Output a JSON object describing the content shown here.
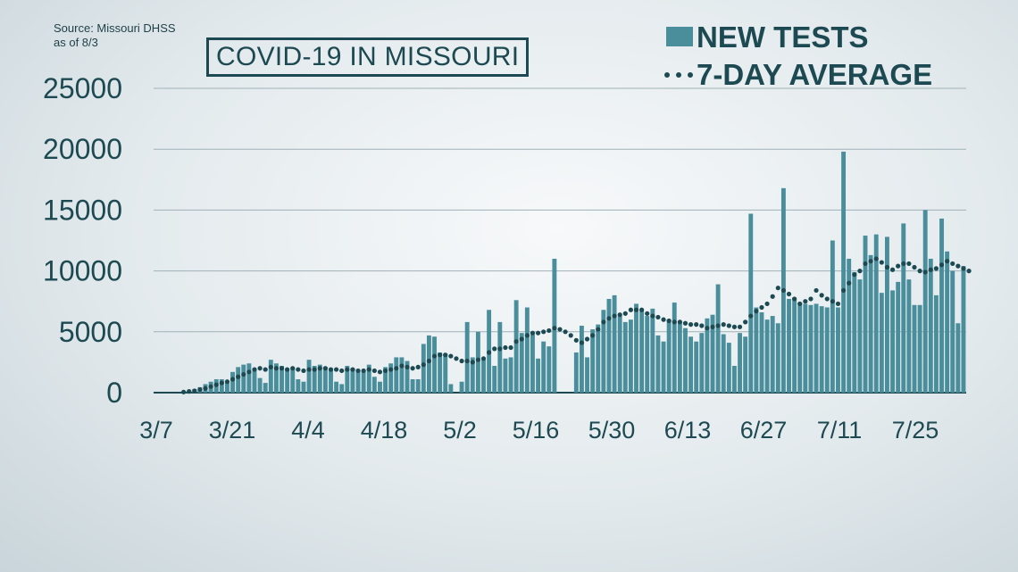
{
  "source": {
    "line1": "Source: Missouri DHSS",
    "line2": "as of 8/3"
  },
  "chart_data": {
    "type": "bar",
    "title": "COVID-19 IN MISSOURI",
    "ylim": [
      0,
      25000
    ],
    "yticks": [
      0,
      5000,
      10000,
      15000,
      20000,
      25000
    ],
    "xtick_labels": [
      "3/7",
      "3/21",
      "4/4",
      "4/18",
      "5/2",
      "5/16",
      "5/30",
      "6/13",
      "6/27",
      "7/11",
      "7/25"
    ],
    "grid": true,
    "legend_position": "top-right",
    "colors": {
      "bars": "#4a8e9c",
      "average": "#1d4a52",
      "text": "#1d4a52",
      "grid": "#9fb1b7"
    },
    "series": [
      {
        "name": "NEW TESTS",
        "kind": "bar",
        "values": [
          0,
          0,
          0,
          0,
          0,
          100,
          150,
          300,
          450,
          700,
          900,
          1100,
          1100,
          800,
          1700,
          2100,
          2300,
          2400,
          1800,
          1200,
          800,
          2700,
          2400,
          2200,
          2000,
          2000,
          1100,
          900,
          2700,
          2200,
          2300,
          2100,
          2000,
          900,
          700,
          2200,
          2000,
          1900,
          1800,
          2300,
          1300,
          900,
          2100,
          2400,
          2900,
          2900,
          2600,
          1100,
          1100,
          4000,
          4700,
          4600,
          3300,
          3200,
          700,
          0,
          900,
          5800,
          2900,
          5000,
          2700,
          6800,
          2200,
          5800,
          2800,
          2900,
          7600,
          4900,
          7000,
          4800,
          2800,
          4200,
          3800,
          11000,
          0,
          0,
          0,
          3300,
          5500,
          2900,
          5200,
          5600,
          6800,
          7700,
          8000,
          6300,
          5800,
          6000,
          7300,
          6700,
          6300,
          6900,
          4700,
          4200,
          6000,
          7400,
          5900,
          5300,
          4600,
          4200,
          4900,
          6100,
          6400,
          8900,
          4800,
          4100,
          2200,
          4900,
          4600,
          14700,
          7000,
          6600,
          6000,
          6300,
          5700,
          16800,
          7700,
          7800,
          7400,
          7300,
          7200,
          7300,
          7100,
          7000,
          12500,
          7000,
          19800,
          11000,
          9900,
          9300,
          12900,
          11300,
          13000,
          8200,
          12800,
          8400,
          9100,
          13900,
          9300,
          7200,
          7200,
          15000,
          11000,
          8000,
          14300,
          11600,
          10000,
          5700,
          10400
        ]
      },
      {
        "name": "7-DAY AVERAGE",
        "kind": "dotted-line",
        "values": [
          null,
          null,
          null,
          null,
          null,
          50,
          100,
          150,
          250,
          350,
          500,
          650,
          800,
          900,
          1100,
          1300,
          1500,
          1700,
          1900,
          2000,
          1900,
          2100,
          2000,
          2000,
          1900,
          2000,
          1900,
          1800,
          1900,
          1900,
          2000,
          2000,
          1900,
          1900,
          1800,
          1900,
          1900,
          1800,
          1800,
          1900,
          1800,
          1700,
          1800,
          1900,
          2000,
          2200,
          2100,
          2000,
          2100,
          2300,
          2600,
          3000,
          3100,
          3100,
          3000,
          2800,
          2600,
          2600,
          2500,
          2700,
          2800,
          3300,
          3600,
          3600,
          3700,
          3700,
          4200,
          4400,
          4700,
          4900,
          4900,
          5000,
          5100,
          5300,
          5200,
          5000,
          4700,
          4300,
          4100,
          4400,
          4700,
          5200,
          5800,
          6100,
          6300,
          6400,
          6500,
          6800,
          6800,
          6800,
          6500,
          6300,
          6200,
          6000,
          5900,
          5800,
          5800,
          5700,
          5600,
          5600,
          5500,
          5300,
          5400,
          5500,
          5600,
          5500,
          5400,
          5400,
          5800,
          6300,
          6700,
          7000,
          7300,
          7900,
          8600,
          8400,
          8100,
          7700,
          7300,
          7500,
          7700,
          8400,
          8000,
          7700,
          7500,
          7300,
          8400,
          9000,
          9700,
          10000,
          10600,
          10800,
          11000,
          10700,
          10300,
          10100,
          10400,
          10600,
          10600,
          10300,
          10000,
          9900,
          10100,
          10200,
          10500,
          10800,
          10600,
          10400,
          10200,
          10000
        ]
      }
    ]
  }
}
